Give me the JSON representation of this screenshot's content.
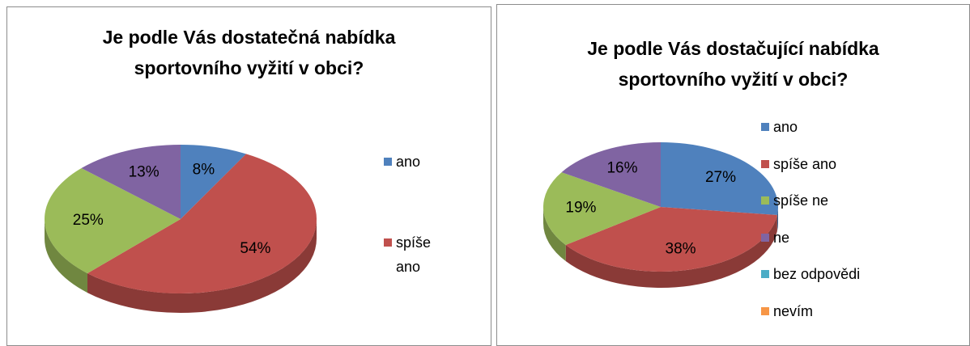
{
  "chart_data": [
    {
      "type": "pie",
      "title": "Je podle Vás dostatečná nabídka sportovního vyžití v obci?",
      "categories": [
        "ano",
        "spíše ano",
        null,
        null
      ],
      "values": [
        8,
        54,
        25,
        13
      ],
      "value_labels": [
        "8%",
        "54%",
        "25%",
        "13%"
      ],
      "colors": [
        "#4f81bd",
        "#c0504d",
        "#9bbb59",
        "#8064a2"
      ],
      "legend": "right"
    },
    {
      "type": "pie",
      "title": "Je podle Vás dostačující nabídka sportovního vyžití v obci?",
      "categories": [
        "ano",
        "spíše ano",
        "spíše ne",
        "ne",
        "bez odpovědi",
        "nevím"
      ],
      "values": [
        27,
        38,
        19,
        16,
        0,
        0
      ],
      "value_labels": [
        "27%",
        "38%",
        "19%",
        "16%",
        null,
        null
      ],
      "colors": [
        "#4f81bd",
        "#c0504d",
        "#9bbb59",
        "#8064a2",
        "#4bacc6",
        "#f79646"
      ],
      "legend": "right"
    }
  ]
}
